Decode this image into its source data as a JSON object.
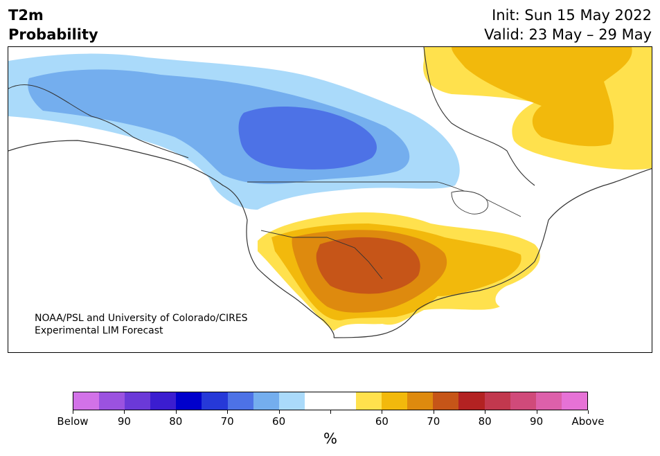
{
  "title": {
    "line1": "T2m",
    "line2": "Probability"
  },
  "dates": {
    "init": "Init: Sun 15 May 2022",
    "valid": "Valid: 23 May – 29 May"
  },
  "credit": {
    "line1": "NOAA/PSL and University of Colorado/CIRES",
    "line2": "Experimental LIM Forecast"
  },
  "colorbar": {
    "unit": "%",
    "colors": [
      "#d272e8",
      "#9b52e0",
      "#6b39d8",
      "#3b1dd0",
      "#0000cc",
      "#2639d8",
      "#4d72e6",
      "#74aeee",
      "#aadafa",
      "#ffffff",
      "#ffffff",
      "#ffe14d",
      "#f2b90c",
      "#de8a0e",
      "#c65518",
      "#b32222",
      "#c2384e",
      "#d04a7a",
      "#dd60aa",
      "#e672d6"
    ],
    "labels": [
      "Below",
      "90",
      "80",
      "70",
      "60",
      "",
      "60",
      "70",
      "80",
      "90",
      "Above"
    ]
  },
  "map": {
    "cold_colors": {
      "c60": "#aadafa",
      "c70": "#74aeee",
      "c80": "#4d72e6"
    },
    "warm_colors": {
      "w60": "#ffe14d",
      "w65": "#f2b90c",
      "w70": "#de8a0e",
      "w75": "#c65518"
    }
  }
}
